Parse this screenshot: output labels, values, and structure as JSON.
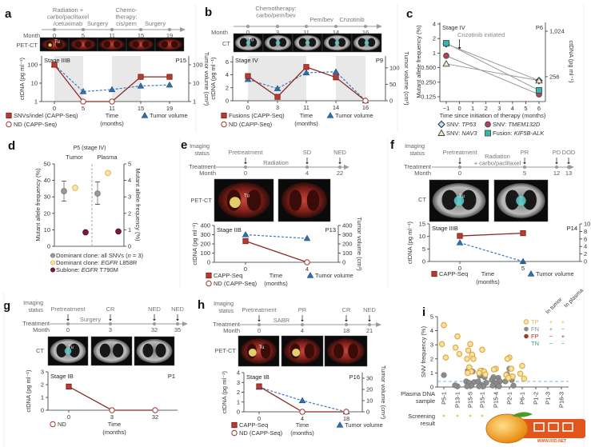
{
  "chart_data": [
    {
      "panel": "a",
      "type": "line",
      "timeline": {
        "row_label": "Month",
        "months": [
          "0",
          "5",
          "11",
          "15",
          "19"
        ],
        "treatments": [
          [
            "Radiation +",
            "carbo/paclitaxel",
            "/cetuximab"
          ],
          [
            "Surgery"
          ],
          [
            "Chemo-",
            "therapy:",
            "cis/pem"
          ],
          [
            "Surgery"
          ]
        ]
      },
      "imaging": {
        "modality": "PET-CT",
        "tumor_tag": "Tu"
      },
      "plot": {
        "stage": "Stage IIIB",
        "patient": "P15",
        "ylabel": "ctDNA (pg ml⁻¹)",
        "y2label": "Tumor volume (cm³)",
        "xlabel": [
          "Time",
          "(months)"
        ],
        "yscale": "log",
        "ylim": [
          1,
          300
        ],
        "yticks": [
          1,
          10,
          100
        ],
        "y2lim": [
          1,
          300
        ],
        "y2ticks": [
          1,
          10,
          100
        ],
        "x": [
          "0",
          "5",
          "11",
          "15",
          "19"
        ],
        "ctdna": [
          100,
          1,
          1,
          22,
          22
        ],
        "ctdna_nd": [
          false,
          true,
          true,
          false,
          false
        ],
        "tumor_volume": [
          100,
          3.5,
          4.5,
          7,
          8
        ],
        "shaded": [
          [
            "0",
            "5"
          ],
          [
            "11",
            "15"
          ]
        ]
      },
      "legend": {
        "detected": "SNVs/indel (CAPP-Seq)",
        "nd": "ND (CAPP-Seq)",
        "tumor": "Tumor volume"
      }
    },
    {
      "panel": "b",
      "type": "line",
      "timeline": {
        "row_label": "Month",
        "months": [
          "0",
          "3",
          "11",
          "14",
          "16"
        ],
        "treatments": [
          [
            "Chemotherapy:",
            "carbo/pem/bev"
          ],
          [
            "Pem/bev"
          ],
          [
            "Crizotinib"
          ]
        ]
      },
      "imaging": {
        "modality": "CT",
        "tumor_tag": "Tu"
      },
      "plot": {
        "stage": "Stage IV",
        "patient": "P9",
        "ylabel": "ctDNA (pg ml⁻¹)",
        "y2label": "Tumor volume (cm³)",
        "xlabel": [
          "Time",
          "(months)"
        ],
        "yscale": "linear",
        "ylim": [
          0,
          6.9
        ],
        "yticks": [
          0,
          2,
          4,
          6
        ],
        "y2lim": [
          0,
          136
        ],
        "y2ticks": [
          0,
          50,
          100
        ],
        "x": [
          "0",
          "3",
          "11",
          "14",
          "16"
        ],
        "ctdna": [
          3.8,
          0.6,
          5.2,
          3.6,
          0
        ],
        "ctdna_nd": [
          false,
          false,
          false,
          false,
          true
        ],
        "tumor_volume": [
          65,
          37,
          85,
          88,
          0
        ],
        "shaded": [
          [
            "0",
            "11"
          ],
          [
            "14",
            "16"
          ]
        ]
      },
      "legend": {
        "detected": "Fusions (CAPP-Seq)",
        "nd": "ND (CAPP-Seq)",
        "tumor": "Tumor volume"
      }
    },
    {
      "panel": "c",
      "type": "line",
      "stage": "Stage IV",
      "patient": "P6",
      "annotation": "Crizotinib initiated",
      "annotation_x": 0,
      "ylabel": "Mutant allele frequency (%)",
      "y2label": "ctDNA (pg ml⁻¹)",
      "xlabel": "Time since initiation of therapy (months)",
      "yscale": "log2",
      "ylim": [
        0.125,
        4
      ],
      "yticks": [
        "0.125",
        "0.250",
        "0.500",
        "1",
        "2",
        "4"
      ],
      "y2lim": [
        120,
        1340
      ],
      "y2ticks": [
        256,
        1024
      ],
      "y2ticklabels": [
        "256",
        "1,024"
      ],
      "xlim": [
        -1,
        6
      ],
      "xticks": [
        "−1",
        "0",
        "1",
        "2",
        "3",
        "4",
        "5",
        "6"
      ],
      "series": [
        {
          "name": "SNV: TP53",
          "prefix": "SNV: ",
          "gene": "TP53",
          "marker": "diamond",
          "color": "#bfe3ef",
          "x": [
            -1,
            6
          ],
          "y": [
            1.55,
            0.27
          ]
        },
        {
          "name": "SNV: TMEM132D",
          "prefix": "SNV: ",
          "gene": "TMEM132D",
          "marker": "circle",
          "color": "#b3435a",
          "x": [
            -1,
            6
          ],
          "y": [
            0.88,
            0.14
          ]
        },
        {
          "name": "SNV: NAV3",
          "prefix": "SNV: ",
          "gene": "NAV3",
          "marker": "triangle",
          "color": "#efe6c2",
          "x": [
            -1,
            6
          ],
          "y": [
            0.6,
            0.27
          ]
        },
        {
          "name": "Fusion: KIF5B-ALK",
          "prefix": "Fusion: ",
          "gene": "KIF5B-ALK",
          "marker": "square",
          "color": "#3bb3a9",
          "x": [
            -1,
            6
          ],
          "y": [
            1.6,
            0.17
          ]
        }
      ]
    },
    {
      "panel": "d",
      "type": "scatter",
      "title": "P5 (stage IV)",
      "categories": [
        "Tumor",
        "Plasma"
      ],
      "ylabel": "Mutant allele frequency (%)",
      "y2label": "Mutant allele frequency (%)",
      "ylim": [
        0,
        50
      ],
      "yticks": [
        0,
        10,
        20,
        30,
        40,
        50
      ],
      "y2lim": [
        0,
        5
      ],
      "y2ticks": [
        0,
        1,
        2,
        3,
        4,
        5
      ],
      "series": [
        {
          "name": "Dominant clone: all SNVs (n = 3)",
          "color": "#9a9a9a",
          "tumor": {
            "mean": 33.5,
            "low": 27.5,
            "high": 39.5
          },
          "plasma": {
            "mean": 3.2,
            "low": 2.55,
            "high": 3.9
          }
        },
        {
          "name": "Dominant clone: EGFR L858R",
          "color": "#f0cf6e",
          "tumor": {
            "mean": 35.5
          },
          "plasma": {
            "mean": 4.45
          }
        },
        {
          "name": "Subclone: EGFR T790M",
          "color": "#7b1846",
          "tumor": {
            "mean": 8.5
          },
          "plasma": {
            "mean": 0.9
          }
        }
      ],
      "legend": [
        {
          "pre": "Dominant clone: all SNVs (",
          "it": "n",
          "post": " = 3)"
        },
        {
          "pre": "Dominant clone: ",
          "it": "EGFR",
          "post": " L858R"
        },
        {
          "pre": "Sublone: ",
          "it": "EGFR",
          "post": " T790M"
        }
      ]
    },
    {
      "panel": "e",
      "type": "line",
      "timeline": {
        "imaging_label": [
          "Imaging",
          "status"
        ],
        "treatment_label": "Treatment",
        "row_label": "Month",
        "months": [
          "0",
          "4",
          "22"
        ],
        "imaging_status": [
          "Pretreatment",
          "SD",
          "NED"
        ],
        "treatments": [
          [
            "Radiation"
          ]
        ]
      },
      "imaging": {
        "modality": "PET-CT",
        "tumor_tag": "Tu"
      },
      "plot": {
        "stage": "Stage IIB",
        "patient": "P13",
        "ylabel": "ctDNA (pg ml⁻¹)",
        "y2label": "Tumor volume (cm³)",
        "xlabel": [
          "Time",
          "(months)"
        ],
        "yscale": "linear",
        "ylim": [
          0,
          400
        ],
        "yticks": [
          0,
          100,
          200,
          300,
          400
        ],
        "y2lim": [
          0,
          400
        ],
        "y2ticks": [
          0,
          100,
          200,
          300,
          400
        ],
        "x": [
          "0",
          "4"
        ],
        "ctdna": [
          230,
          0
        ],
        "ctdna_nd": [
          false,
          true
        ],
        "tumor_volume": [
          300,
          260
        ]
      },
      "legend": {
        "detected": "CAPP-Seq",
        "nd": "ND (CAPP-Seq)",
        "tumor": "Tumor volume"
      }
    },
    {
      "panel": "f",
      "type": "line",
      "timeline": {
        "imaging_label": [
          "Imaging",
          "status"
        ],
        "treatment_label": "Treatment",
        "row_label": "Month",
        "months": [
          "0",
          "5",
          "12",
          "13"
        ],
        "imaging_status": [
          "Pretreatment",
          "PR",
          "PD",
          "DOD"
        ],
        "treatments": [
          [
            "Radiation",
            "+ carbo/paclitaxel"
          ]
        ]
      },
      "imaging": {
        "modality": "CT",
        "tumor_tag": "Tu"
      },
      "plot": {
        "stage": "Stage IIIB",
        "patient": "P14",
        "ylabel": "ctDNA (pg ml⁻¹)",
        "y2label": "Tumor volume (cm³)",
        "xlabel": [
          "Time",
          "(months)"
        ],
        "yscale": "linear",
        "ylim": [
          0,
          15
        ],
        "yticks": [
          0,
          5,
          10,
          15
        ],
        "y2lim": [
          0,
          10
        ],
        "y2ticks": [
          0,
          2,
          4,
          6,
          8,
          10
        ],
        "x": [
          "0",
          "5"
        ],
        "ctdna": [
          10.2,
          11.3
        ],
        "ctdna_nd": [
          false,
          false
        ],
        "tumor_volume": [
          5,
          0
        ]
      },
      "legend": {
        "detected": "CAPP-Seq",
        "tumor": "Tumor volume"
      }
    },
    {
      "panel": "g",
      "type": "line",
      "timeline": {
        "imaging_label": [
          "Imaging",
          "status"
        ],
        "treatment_label": "Treatment",
        "row_label": "Month",
        "months": [
          "0",
          "3",
          "32",
          "35"
        ],
        "imaging_status": [
          "Pretreatment",
          "CR",
          "NED",
          "NED"
        ],
        "treatments": [
          [
            "Surgery"
          ]
        ]
      },
      "imaging": {
        "modality": "CT",
        "tumor_tag": "Tu"
      },
      "plot": {
        "stage": "Stage IB",
        "patient": "P1",
        "ylabel": "ctDNA (pg ml⁻¹)",
        "xlabel": [
          "Time",
          "(months)"
        ],
        "yscale": "linear",
        "ylim": [
          0,
          3
        ],
        "yticks": [
          0,
          1,
          2,
          3
        ],
        "x": [
          "0",
          "3",
          "32"
        ],
        "ctdna": [
          1.85,
          0,
          0
        ],
        "ctdna_nd": [
          false,
          true,
          true
        ]
      },
      "legend": {
        "nd": "ND"
      }
    },
    {
      "panel": "h",
      "type": "line",
      "timeline": {
        "imaging_label": [
          "Imaging",
          "status"
        ],
        "treatment_label": "Treatment",
        "row_label": "Month",
        "months": [
          "0",
          "4",
          "18",
          "21"
        ],
        "imaging_status": [
          "Pretreatment",
          "PR",
          "CR",
          "NED"
        ],
        "treatments": [
          [
            "SABR"
          ]
        ]
      },
      "imaging": {
        "modality": "PET-CT",
        "tumor_tag": "Tu"
      },
      "plot": {
        "stage": "Stage IB",
        "patient": "P16",
        "ylabel": "ctDNA (pg ml⁻¹)",
        "y2label": "Tumor volume (cm³)",
        "xlabel": [
          "Time",
          "(months)"
        ],
        "yscale": "linear",
        "ylim": [
          0,
          4
        ],
        "yticks": [
          0,
          1,
          2,
          3,
          4
        ],
        "y2lim": [
          0,
          35
        ],
        "y2ticks": [
          0,
          10,
          20,
          30
        ],
        "x": [
          "0",
          "4",
          "18"
        ],
        "ctdna": [
          2.6,
          0,
          0
        ],
        "ctdna_nd": [
          false,
          true,
          true
        ],
        "tumor_volume": [
          22,
          10,
          0
        ]
      },
      "legend": {
        "detected": "CAPP-Seq",
        "nd": "ND (CAPP-Seq)",
        "tumor": "Tumor volume"
      }
    },
    {
      "panel": "i",
      "type": "scatter",
      "ylabel": "SNV frequency (%)",
      "ylim": [
        0,
        5
      ],
      "yticks": [
        0,
        1,
        2,
        3,
        4,
        5
      ],
      "threshold": 0.4,
      "row_labels": {
        "sample": [
          "Plasma DNA",
          "sample"
        ],
        "screening": [
          "Screening",
          "result"
        ]
      },
      "categories": [
        "P5-1",
        "P13-1",
        "P15-5",
        "P15-1",
        "P15-4",
        "P2-1",
        "P6-1",
        "P1-2",
        "P1-3",
        "P16-3"
      ],
      "TP": [
        [
          4.4,
          3.05,
          2.1
        ],
        [
          3.6,
          2.8,
          2.35
        ],
        [
          3.05,
          2.6,
          2.3,
          2.0,
          2.0,
          1.4,
          1.1,
          1.0
        ],
        [
          2.65,
          1.15,
          1.1,
          1.0,
          0.9
        ],
        [
          1.3,
          1.25
        ],
        [
          2.1,
          2.0,
          1.3,
          0.85,
          0.75,
          0.65
        ],
        [
          1.5,
          0.95,
          0.6
        ],
        [],
        [],
        []
      ],
      "FN": [
        [
          0.85
        ],
        [
          0.05,
          0.12
        ],
        [
          1.2,
          1.15,
          1.1,
          0.4,
          0.35,
          0.3,
          0.1,
          0.05
        ],
        [
          1.15,
          0.8,
          0.7,
          0.4,
          0.3,
          0.15,
          0.05,
          0.05
        ],
        [
          1.3,
          0.7,
          0.65,
          0.5,
          0.4,
          0.3,
          0.2,
          0.1,
          0.05
        ],
        [
          1.3,
          0.9,
          0.5,
          0.4,
          0.1
        ],
        [],
        [],
        [],
        []
      ],
      "screening_result": [
        "TP",
        "TP",
        "TP",
        "TP",
        "",
        "",
        "",
        "",
        "",
        ""
      ],
      "legend": {
        "headers": [
          "In tumor",
          "In plasma"
        ],
        "rows": [
          {
            "name": "TP",
            "tumor": "+",
            "plasma": "+",
            "color": "#e8b54a"
          },
          {
            "name": "FN",
            "tumor": "+",
            "plasma": "−",
            "color": "#8c8c8c"
          },
          {
            "name": "FP",
            "tumor": "−",
            "plasma": "+",
            "color": "#a8322d"
          },
          {
            "name": "TN",
            "tumor": "−",
            "plasma": "−",
            "color": "#3a9a7a"
          }
        ]
      }
    }
  ],
  "watermark": {
    "text": "小桔灯",
    "url": "WWW.IIVD.NET"
  },
  "colors": {
    "ctdna": "#8b2a24",
    "ctdna_marker": "#b83a32",
    "tumor_volume": "#2f6fae",
    "shade": "#e8e8e8"
  }
}
